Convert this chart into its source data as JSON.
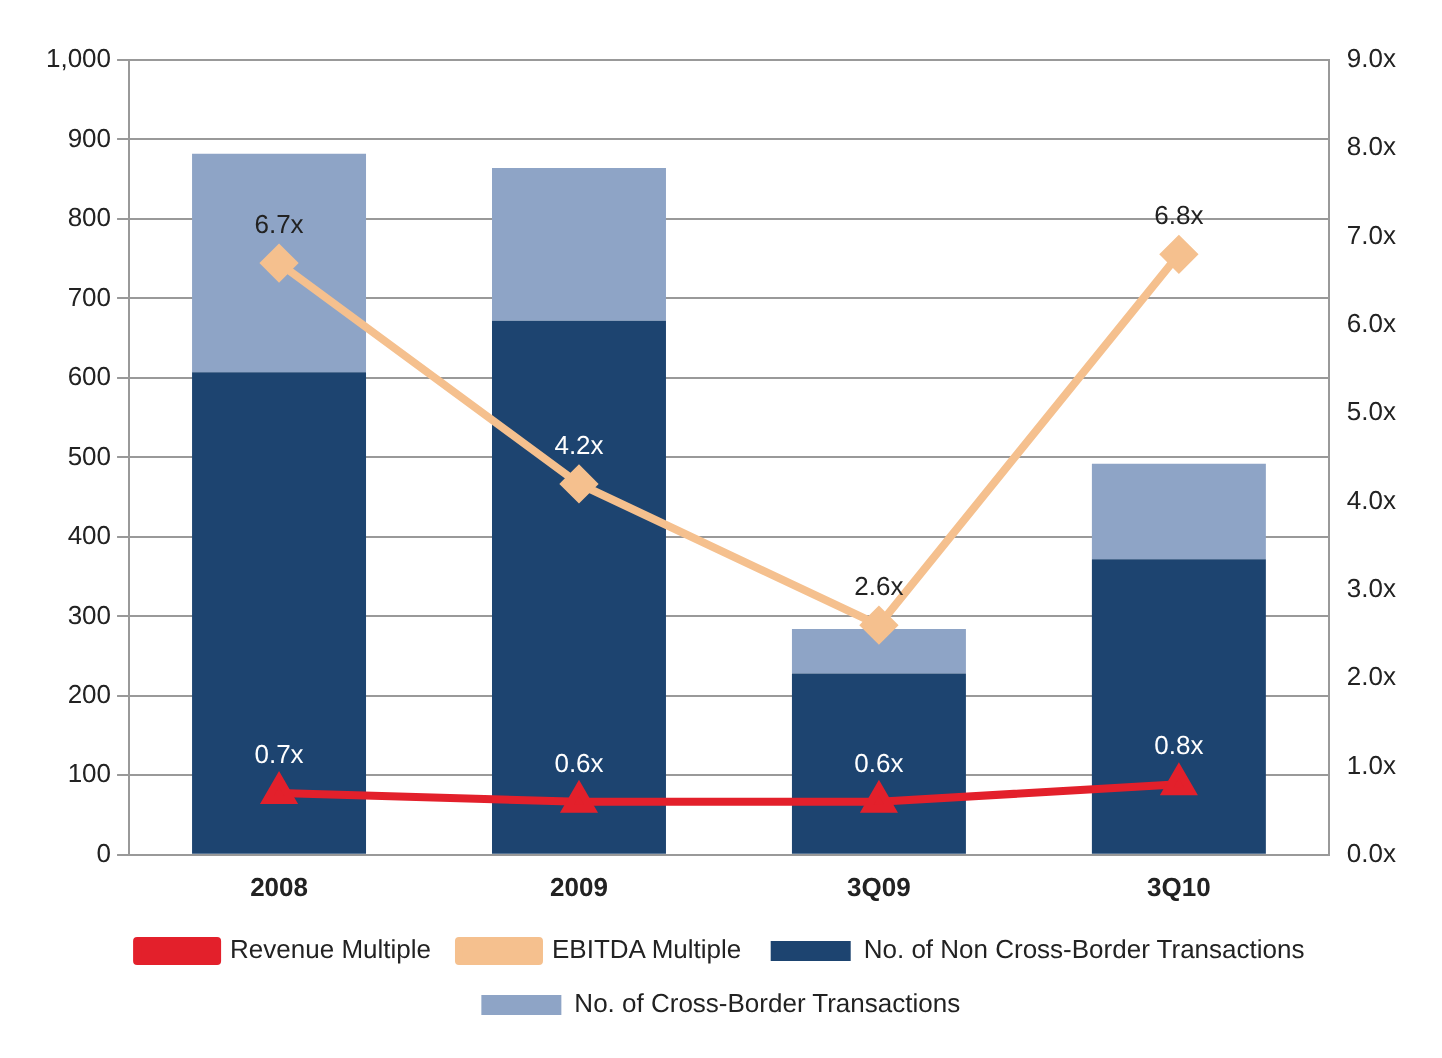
{
  "chart_data": {
    "type": "bar",
    "stacked": true,
    "categories": [
      "2008",
      "2009",
      "3Q09",
      "3Q10"
    ],
    "series": [
      {
        "name": "No. of Non Cross-Border Transactions",
        "color": "#1d4470",
        "values": [
          607,
          672,
          228,
          372
        ]
      },
      {
        "name": "No. of Cross-Border Transactions",
        "color": "#8ea4c6",
        "values": [
          275,
          192,
          56,
          120
        ]
      },
      {
        "name": "Revenue Multiple",
        "type": "line",
        "axis": "y2",
        "color": "#e3202b",
        "marker": "triangle",
        "values": [
          0.7,
          0.6,
          0.6,
          0.8
        ],
        "value_labels": [
          "0.7x",
          "0.6x",
          "0.6x",
          "0.8x"
        ]
      },
      {
        "name": "EBITDA Multiple",
        "type": "line",
        "axis": "y2",
        "color": "#f5c08e",
        "marker": "diamond",
        "values": [
          6.7,
          4.2,
          2.6,
          6.8
        ],
        "value_labels": [
          "6.7x",
          "4.2x",
          "2.6x",
          "6.8x"
        ]
      }
    ],
    "ylim": [
      0,
      1000
    ],
    "yticks": [
      0,
      100,
      200,
      300,
      400,
      500,
      600,
      700,
      800,
      900,
      {
        "value": 1000,
        "label": "1,000"
      }
    ],
    "y2lim": [
      0,
      9
    ],
    "y2ticks": [
      {
        "value": 0,
        "label": "0.0x"
      },
      {
        "value": 1,
        "label": "1.0x"
      },
      {
        "value": 2,
        "label": "2.0x"
      },
      {
        "value": 3,
        "label": "3.0x"
      },
      {
        "value": 4,
        "label": "4.0x"
      },
      {
        "value": 5,
        "label": "5.0x"
      },
      {
        "value": 6,
        "label": "6.0x"
      },
      {
        "value": 7,
        "label": "7.0x"
      },
      {
        "value": 8,
        "label": "8.0x"
      },
      {
        "value": 9,
        "label": "9.0x"
      }
    ],
    "grid": "y",
    "legend": "bottom"
  }
}
